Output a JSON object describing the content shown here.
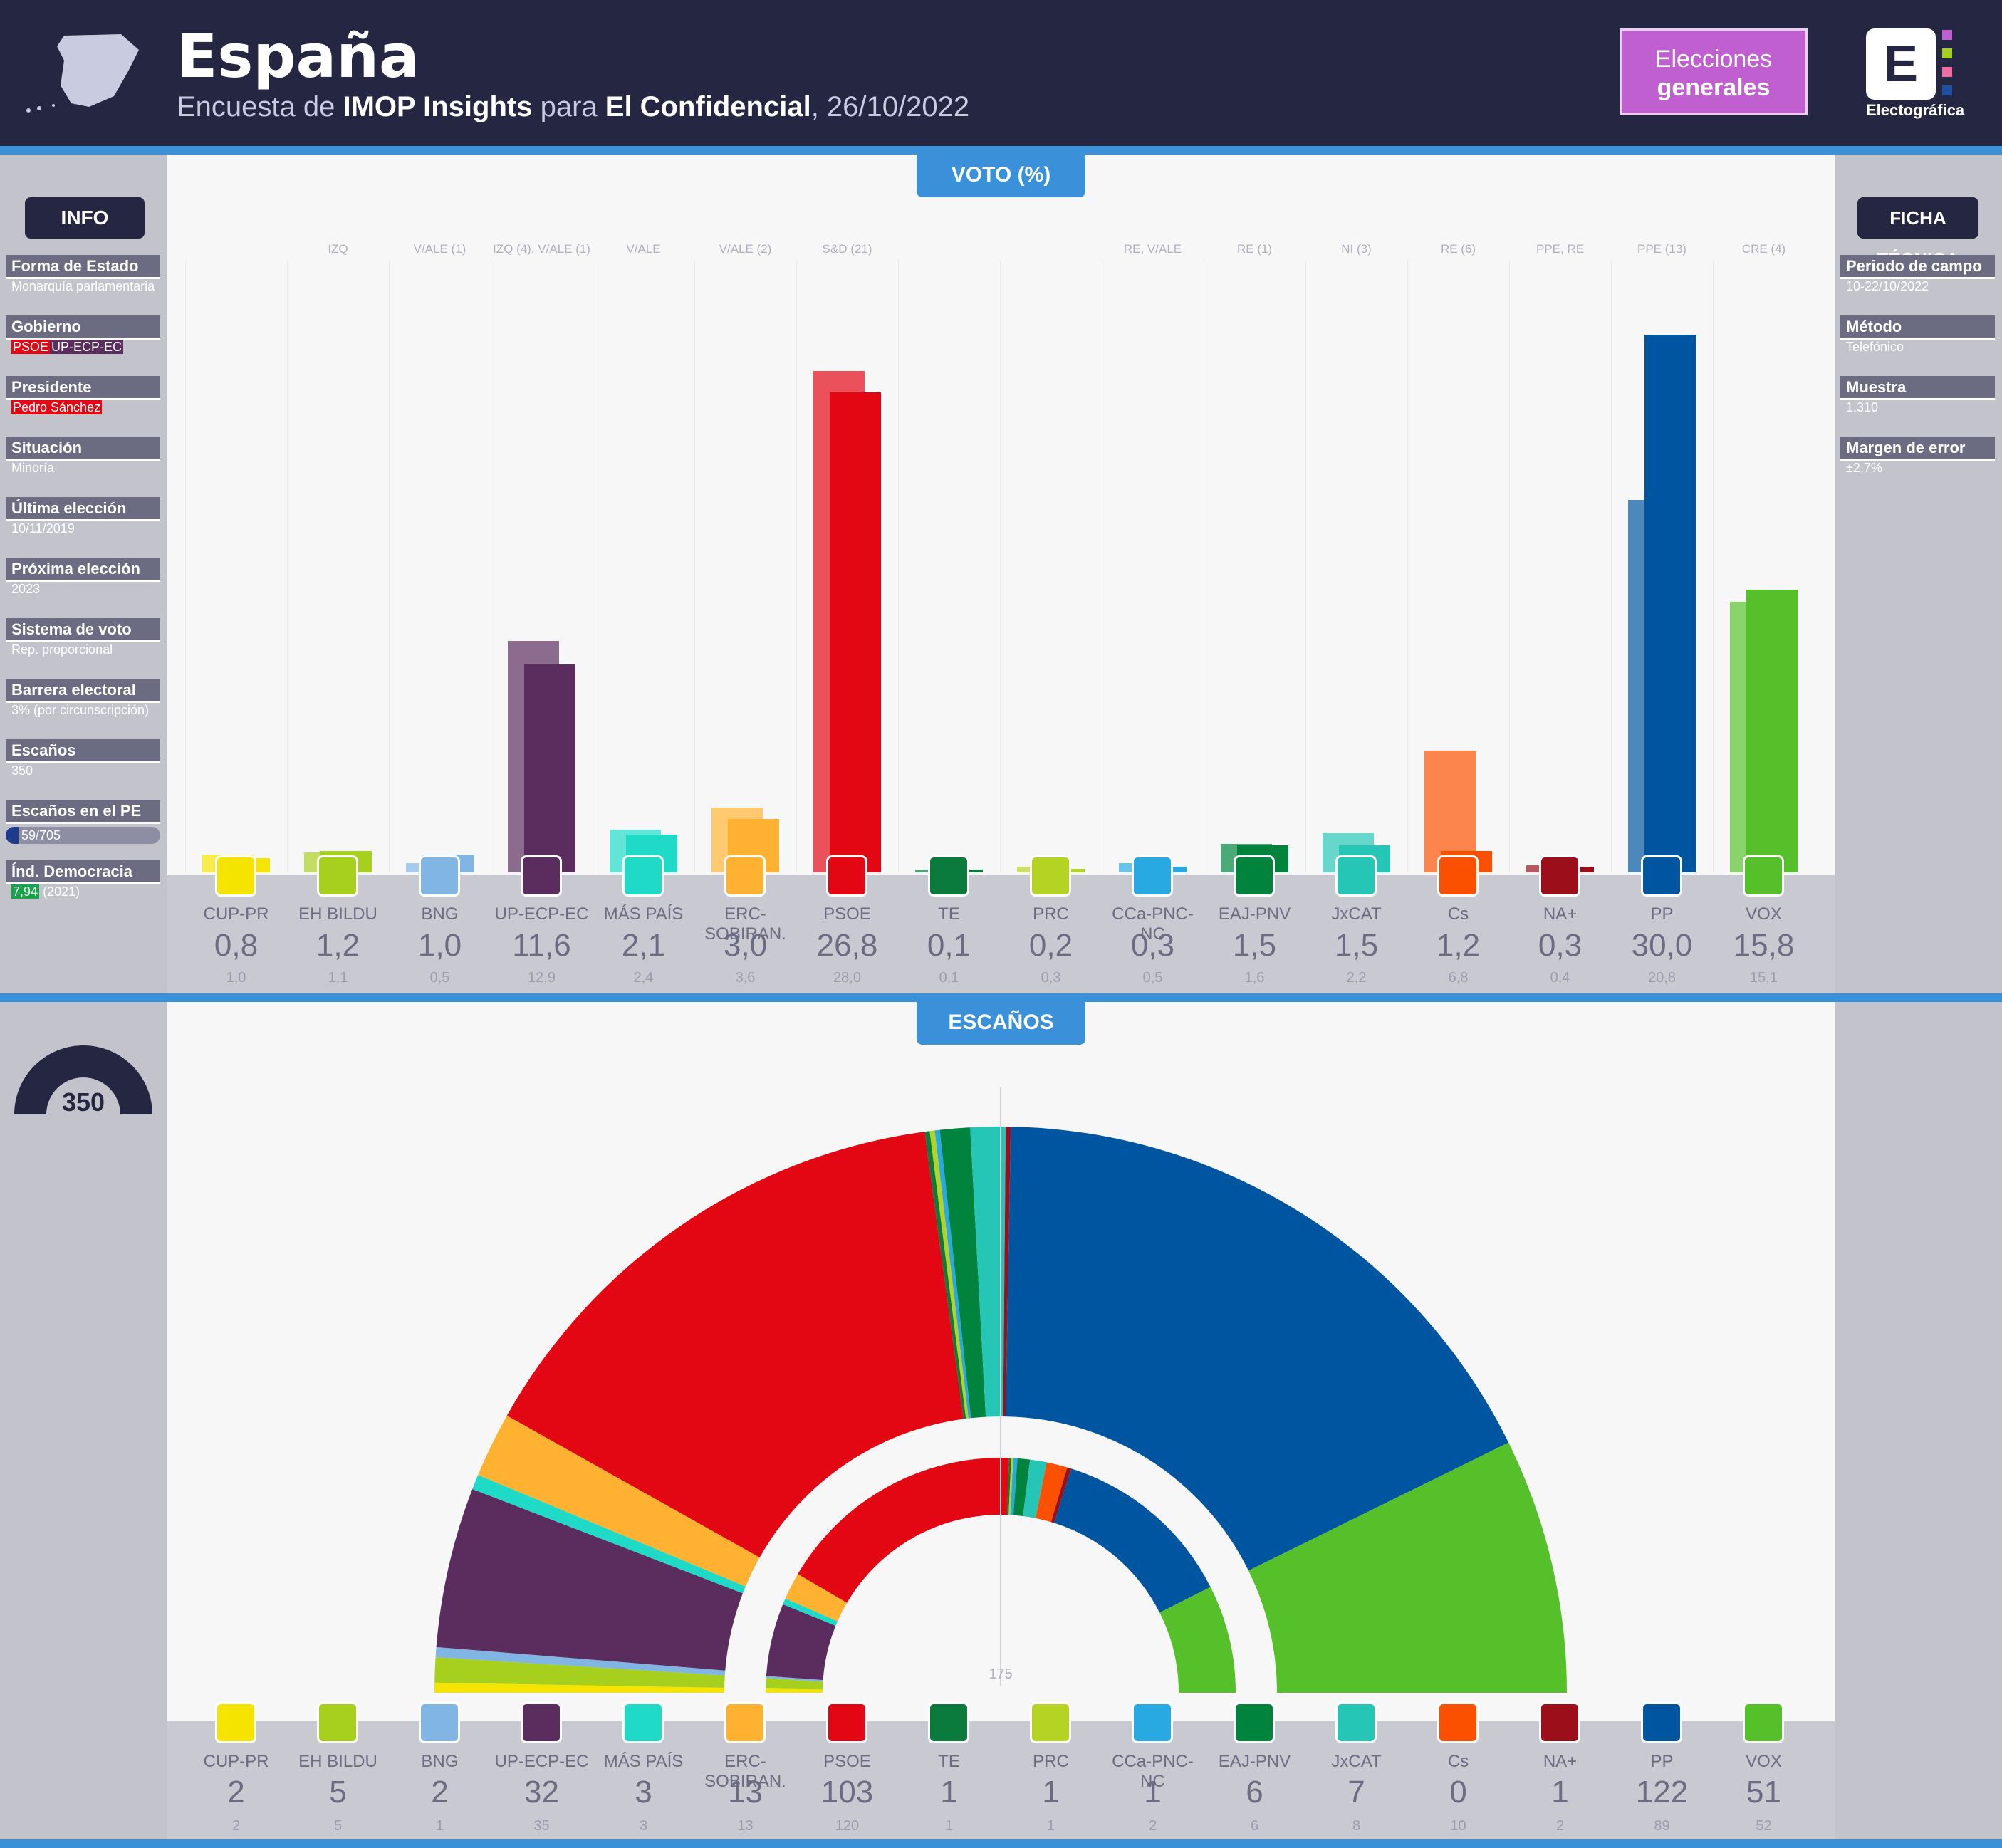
{
  "header": {
    "title": "España",
    "subtitle_prefix": "Encuesta de ",
    "pollster": "IMOP Insights",
    "subtitle_mid": " para ",
    "media": "El Confidencial",
    "date": ", 26/10/2022",
    "election_type_line1": "Elecciones",
    "election_type_line2": "generales",
    "brand": "Electográfica",
    "brand_letter": "E"
  },
  "sections": {
    "vote": "VOTO (%)",
    "seats": "ESCAÑOS"
  },
  "info": {
    "title": "INFO",
    "rows": [
      {
        "label": "Forma de Estado",
        "value": "Monarquía parlamentaria"
      },
      {
        "label": "Gobierno",
        "value_a": "PSOE",
        "value_b": "UP-ECP-EC"
      },
      {
        "label": "Presidente",
        "value_red": "Pedro Sánchez"
      },
      {
        "label": "Situación",
        "value": "Minoría"
      },
      {
        "label": "Última elección",
        "value": "10/11/2019"
      },
      {
        "label": "Próxima elección",
        "value": "2023"
      },
      {
        "label": "Sistema de voto",
        "value": "Rep. proporcional"
      },
      {
        "label": "Barrera electoral",
        "value": "3% (por circunscripción)"
      },
      {
        "label": "Escaños",
        "value": "350"
      },
      {
        "label": "Escaños en el PE",
        "value": "59/705",
        "fraction": 0.084
      },
      {
        "label": "Índ. Democracia EIU",
        "value_green": "7,94",
        "value": "(2021)"
      }
    ],
    "seats_gauge": "350"
  },
  "ficha": {
    "title": "FICHA TÉCNICA",
    "rows": [
      {
        "label": "Periodo de campo",
        "value": "10-22/10/2022"
      },
      {
        "label": "Método",
        "value": "Telefónico"
      },
      {
        "label": "Muestra",
        "value": "1.310"
      },
      {
        "label": "Margen de error",
        "value": "±2,7%"
      }
    ]
  },
  "colors": {
    "header_bg": "#252742",
    "accent_blue": "#3a91d9",
    "elections_box": "#bf5fd0"
  },
  "majority_label": "175",
  "chart_data": [
    {
      "type": "bar",
      "title": "VOTO (%)",
      "categories": [
        "CUP-PR",
        "EH BILDU",
        "BNG",
        "UP-ECP-EC",
        "MÁS PAÍS",
        "ERC-SOBIRAN.",
        "PSOE",
        "TE",
        "PRC",
        "CCa-PNC-NC",
        "EAJ-PNV",
        "JxCAT",
        "Cs",
        "NA+",
        "PP",
        "VOX"
      ],
      "ep_groups": [
        "",
        "IZQ",
        "V/ALE (1)",
        "IZQ (4), V/ALE (1)",
        "V/ALE",
        "V/ALE (2)",
        "S&D (21)",
        "",
        "",
        "RE, V/ALE",
        "RE (1)",
        "NI (3)",
        "RE (6)",
        "PPE, RE",
        "PPE (13)",
        "CRE (4)"
      ],
      "series": [
        {
          "name": "",
          "values": [
            0.8,
            1.2,
            1.0,
            11.6,
            2.1,
            3.0,
            26.8,
            0.1,
            0.2,
            0.3,
            1.5,
            1.5,
            1.2,
            0.3,
            30.0,
            15.8
          ],
          "labels": [
            "0,8",
            "1,2",
            "1,0",
            "11,6",
            "2,1",
            "3,0",
            "26,8",
            "0,1",
            "0,2",
            "0,3",
            "1,5",
            "1,5",
            "1,2",
            "0,3",
            "30,0",
            "15,8"
          ]
        },
        {
          "name": "",
          "values": [
            1.0,
            1.1,
            0.5,
            12.9,
            2.4,
            3.6,
            28.0,
            0.1,
            0.3,
            0.5,
            1.6,
            2.2,
            6.8,
            0.4,
            20.8,
            15.1
          ],
          "labels": [
            "1,0",
            "1,1",
            "0,5",
            "12,9",
            "2,4",
            "3,6",
            "28,0",
            "0,1",
            "0,3",
            "0,5",
            "1,6",
            "2,2",
            "6,8",
            "0,4",
            "20,8",
            "15,1"
          ]
        }
      ],
      "ylim": [
        0,
        32
      ],
      "colors": [
        "#f5e400",
        "#a7cf1e",
        "#80b5e4",
        "#5b2d5e",
        "#1fdac6",
        "#ffb232",
        "#e30613",
        "#0a7a3d",
        "#b5d323",
        "#29a9e1",
        "#00843d",
        "#26c6b6",
        "#fa5000",
        "#9c0f1a",
        "#0055a0",
        "#56c02b"
      ]
    },
    {
      "type": "pie",
      "title": "ESCAÑOS",
      "categories": [
        "CUP-PR",
        "EH BILDU",
        "BNG",
        "UP-ECP-EC",
        "MÁS PAÍS",
        "ERC-SOBIRAN.",
        "PSOE",
        "TE",
        "PRC",
        "CCa-PNC-NC",
        "EAJ-PNV",
        "JxCAT",
        "Cs",
        "NA+",
        "PP",
        "VOX"
      ],
      "series": [
        {
          "name": "",
          "values": [
            2,
            5,
            2,
            32,
            3,
            13,
            103,
            1,
            1,
            1,
            6,
            7,
            0,
            1,
            122,
            51
          ]
        },
        {
          "name": "",
          "values": [
            2,
            5,
            1,
            35,
            3,
            13,
            120,
            1,
            1,
            2,
            6,
            8,
            10,
            2,
            89,
            52
          ]
        }
      ],
      "total": 350,
      "majority": 175
    }
  ]
}
